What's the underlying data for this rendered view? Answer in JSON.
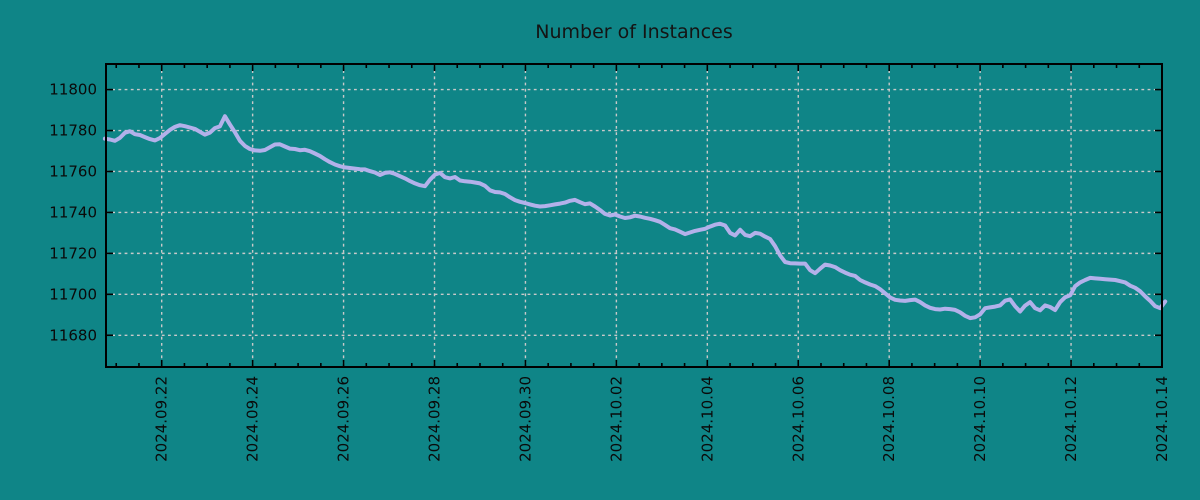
{
  "figure": {
    "title": "Number of Instances",
    "background_color": "#0f8587",
    "text_color": "#141414"
  },
  "chart_data": {
    "type": "line",
    "title": "Number of Instances",
    "xlabel": "",
    "ylabel": "",
    "legend": {
      "show": false
    },
    "grid": {
      "show": true,
      "style": "dashed",
      "color": "#c9c9c9"
    },
    "x_axis": {
      "unit": "date",
      "epoch_date": "2024-09-21",
      "range_days": [
        -0.225,
        23.0
      ],
      "tick_days": [
        1,
        3,
        5,
        7,
        9,
        11,
        13,
        15,
        17,
        19,
        21,
        23
      ],
      "tick_labels": [
        "2024.09.22",
        "2024.09.24",
        "2024.09.26",
        "2024.09.28",
        "2024.09.30",
        "2024.10.02",
        "2024.10.04",
        "2024.10.06",
        "2024.10.08",
        "2024.10.10",
        "2024.10.12",
        "2024.10.14"
      ],
      "minor_tick_step_days": 0.5,
      "label_rotation_deg": 90
    },
    "y_axis": {
      "ticks": [
        11680,
        11700,
        11720,
        11740,
        11760,
        11780,
        11800
      ],
      "range": [
        11664.5,
        11812.5
      ]
    },
    "series": [
      {
        "name": "Number of Instances",
        "color": "#b3b1ea",
        "line_width": 4,
        "x_start_day": -0.25,
        "x_step_day": 0.11,
        "values": [
          11776.0,
          11775.6,
          11775.0,
          11776.4,
          11778.9,
          11779.7,
          11778.2,
          11777.8,
          11776.8,
          11775.8,
          11775.2,
          11776.3,
          11778.3,
          11780.3,
          11781.8,
          11782.6,
          11782.1,
          11781.5,
          11780.8,
          11779.4,
          11778.0,
          11779.0,
          11781.2,
          11782.0,
          11787.0,
          11783.0,
          11779.2,
          11775.0,
          11772.5,
          11771.0,
          11770.3,
          11770.1,
          11770.5,
          11771.8,
          11773.2,
          11773.3,
          11772.2,
          11771.2,
          11771.0,
          11770.4,
          11770.6,
          11769.9,
          11768.8,
          11767.6,
          11766.0,
          11764.6,
          11763.4,
          11762.6,
          11762.0,
          11761.7,
          11761.4,
          11761.1,
          11761.0,
          11760.2,
          11759.5,
          11758.3,
          11759.3,
          11759.6,
          11758.8,
          11757.7,
          11756.6,
          11755.3,
          11754.2,
          11753.3,
          11752.8,
          11756.0,
          11758.5,
          11759.3,
          11757.2,
          11756.6,
          11757.3,
          11755.6,
          11755.2,
          11755.0,
          11754.6,
          11754.2,
          11753.0,
          11750.8,
          11750.0,
          11749.8,
          11749.0,
          11747.4,
          11746.0,
          11745.2,
          11744.6,
          11743.9,
          11743.3,
          11742.9,
          11743.1,
          11743.5,
          11743.9,
          11744.3,
          11744.8,
          11745.7,
          11746.1,
          11745.0,
          11744.0,
          11744.4,
          11742.9,
          11741.2,
          11739.3,
          11738.5,
          11739.0,
          11738.0,
          11737.3,
          11737.6,
          11738.4,
          11738.0,
          11737.4,
          11736.9,
          11736.2,
          11735.4,
          11733.9,
          11732.3,
          11731.7,
          11730.6,
          11729.4,
          11730.2,
          11731.0,
          11731.5,
          11732.0,
          11733.1,
          11734.0,
          11734.5,
          11733.6,
          11730.0,
          11728.8,
          11731.5,
          11729.0,
          11728.4,
          11730.0,
          11729.6,
          11728.2,
          11727.0,
          11723.5,
          11719.0,
          11715.8,
          11715.2,
          11715.1,
          11715.0,
          11715.0,
          11711.8,
          11710.3,
          11712.5,
          11714.5,
          11714.1,
          11713.3,
          11711.8,
          11710.6,
          11709.6,
          11709.0,
          11707.0,
          11705.8,
          11704.8,
          11704.0,
          11702.5,
          11700.5,
          11698.5,
          11697.3,
          11697.0,
          11696.8,
          11697.2,
          11697.4,
          11696.2,
          11694.6,
          11693.4,
          11692.8,
          11692.6,
          11693.0,
          11692.8,
          11692.4,
          11691.2,
          11689.5,
          11688.4,
          11688.8,
          11690.2,
          11693.2,
          11693.6,
          11694.0,
          11694.6,
          11696.9,
          11697.5,
          11694.2,
          11691.6,
          11694.5,
          11696.2,
          11693.2,
          11692.2,
          11694.6,
          11693.8,
          11692.3,
          11696.2,
          11698.6,
          11699.5,
          11704.0,
          11705.8,
          11707.0,
          11708.0,
          11707.8,
          11707.6,
          11707.4,
          11707.2,
          11707.0,
          11706.4,
          11705.8,
          11704.2,
          11703.2,
          11701.5,
          11699.0,
          11696.8,
          11694.2,
          11693.2,
          11696.5
        ]
      }
    ]
  }
}
